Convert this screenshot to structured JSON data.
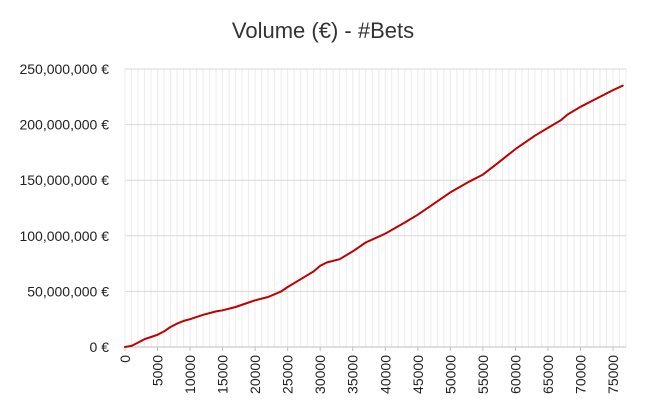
{
  "chart_data": {
    "type": "line",
    "title": "Volume (€) - #Bets",
    "xlabel": "",
    "ylabel": "",
    "xlim": [
      0,
      77000
    ],
    "ylim": [
      0,
      250000000
    ],
    "y_ticks": [
      0,
      50000000,
      100000000,
      150000000,
      200000000,
      250000000
    ],
    "y_tick_labels": [
      "0 €",
      "50,000,000 €",
      "100,000,000 €",
      "150,000,000 €",
      "200,000,000 €",
      "250,000,000 €"
    ],
    "x_ticks": [
      0,
      5000,
      10000,
      15000,
      20000,
      25000,
      30000,
      35000,
      40000,
      45000,
      50000,
      55000,
      60000,
      65000,
      70000,
      75000
    ],
    "x_tick_labels": [
      "0",
      "5000",
      "10000",
      "15000",
      "20000",
      "25000",
      "30000",
      "35000",
      "40000",
      "45000",
      "50000",
      "55000",
      "60000",
      "65000",
      "70000",
      "75000"
    ],
    "x_minor_step": 1000,
    "grid": true,
    "series": [
      {
        "color": "#c00000",
        "x": [
          0,
          1000,
          2000,
          3000,
          4000,
          5000,
          6000,
          7000,
          8000,
          9000,
          10000,
          12000,
          14000,
          15000,
          17000,
          19000,
          20000,
          22000,
          24000,
          25000,
          27000,
          29000,
          30000,
          31000,
          33000,
          35000,
          37000,
          40000,
          43000,
          45000,
          47000,
          50000,
          53000,
          55000,
          57000,
          60000,
          63000,
          65000,
          67000,
          68000,
          70000,
          72000,
          75000,
          76500
        ],
        "y": [
          0,
          1000000,
          4000000,
          7000000,
          9000000,
          11000000,
          14000000,
          18000000,
          21000000,
          23500000,
          25000000,
          29000000,
          32000000,
          33000000,
          36000000,
          40000000,
          42000000,
          45000000,
          50000000,
          54000000,
          61000000,
          68000000,
          73000000,
          76000000,
          79000000,
          86000000,
          94000000,
          102000000,
          112000000,
          119000000,
          127000000,
          139000000,
          149000000,
          155000000,
          164000000,
          178000000,
          190000000,
          197000000,
          204000000,
          209000000,
          216000000,
          222000000,
          231000000,
          235000000
        ]
      }
    ]
  }
}
